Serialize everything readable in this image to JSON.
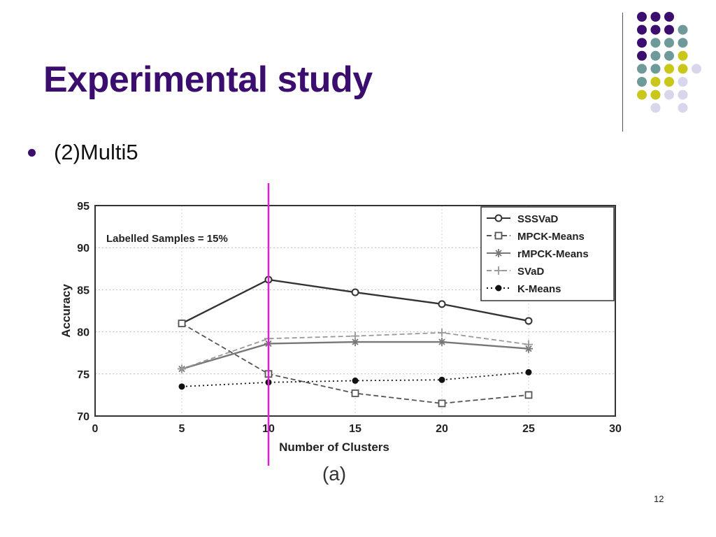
{
  "slide": {
    "title": "Experimental study",
    "bullet": "(2)Multi5",
    "page_number": "12"
  },
  "colors": {
    "purple": "#3b0d6e",
    "teal": "#6f9a9a",
    "olive": "#c9c719",
    "lavender": "#d8d6ea",
    "marker_line": "#e020d8"
  },
  "decoration": {
    "dot_grid": [
      [
        "purple",
        "purple",
        "purple",
        null,
        null
      ],
      [
        "purple",
        "purple",
        "purple",
        "teal",
        null
      ],
      [
        "purple",
        "teal",
        "teal",
        "teal",
        null
      ],
      [
        "purple",
        "teal",
        "teal",
        "olive",
        null
      ],
      [
        "teal",
        "teal",
        "olive",
        "olive",
        "lavender"
      ],
      [
        "teal",
        "olive",
        "olive",
        "lavender",
        null
      ],
      [
        "olive",
        "olive",
        "lavender",
        "lavender",
        null
      ],
      [
        null,
        "lavender",
        null,
        "lavender",
        null
      ]
    ]
  },
  "chart_data": {
    "type": "line",
    "xlabel": "Number of Clusters",
    "ylabel": "Accuracy",
    "xlim": [
      0,
      30
    ],
    "ylim": [
      70,
      95
    ],
    "xticks": [
      0,
      5,
      10,
      15,
      20,
      25,
      30
    ],
    "yticks": [
      70,
      75,
      80,
      85,
      90,
      95
    ],
    "grid": true,
    "annotation": "Labelled Samples = 15%",
    "caption": "(a)",
    "legend_position": "top-right",
    "highlight_x": 10,
    "x": [
      5,
      10,
      15,
      20,
      25
    ],
    "series": [
      {
        "name": "SSSVaD",
        "values": [
          81.0,
          86.2,
          84.7,
          83.3,
          81.3
        ],
        "marker": "circle",
        "dash": "solid",
        "color": "#333333"
      },
      {
        "name": "MPCK-Means",
        "values": [
          81.0,
          75.0,
          72.7,
          71.5,
          72.5
        ],
        "marker": "square",
        "dash": "dashed",
        "color": "#555555"
      },
      {
        "name": "rMPCK-Means",
        "values": [
          75.6,
          78.6,
          78.8,
          78.8,
          78.0
        ],
        "marker": "star",
        "dash": "solid",
        "color": "#777777"
      },
      {
        "name": "SVaD",
        "values": [
          75.6,
          79.2,
          79.5,
          79.9,
          78.5
        ],
        "marker": "plus",
        "dash": "dashed",
        "color": "#999999"
      },
      {
        "name": "K-Means",
        "values": [
          73.5,
          74.0,
          74.2,
          74.3,
          75.2
        ],
        "marker": "dot",
        "dash": "dotted",
        "color": "#111111"
      }
    ]
  }
}
